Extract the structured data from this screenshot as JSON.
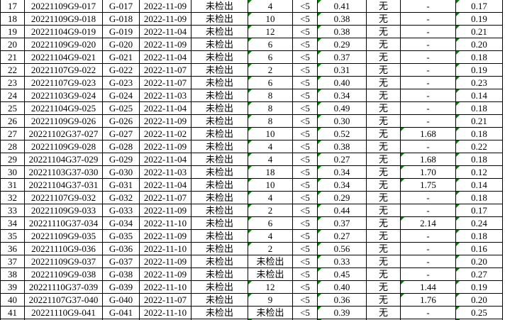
{
  "app": {
    "description_text": "",
    "colors": {
      "grid_border": "#000000",
      "cell_background": "#ffffff",
      "text": "#000000",
      "error_flag_green": "#008000"
    }
  },
  "table": {
    "visible_row_numbers_range": "17-41",
    "column_count": 11,
    "rows": [
      {
        "cells": [
          "17",
          "20221109G9-017",
          "G-017",
          "2022-11-09",
          "未检出",
          "4",
          "<5",
          "0.41",
          "无",
          "-",
          "0.17"
        ],
        "flags": [
          5,
          7,
          10
        ]
      },
      {
        "cells": [
          "18",
          "20221109G9-018",
          "G-018",
          "2022-11-09",
          "未检出",
          "10",
          "<5",
          "0.38",
          "无",
          "-",
          "0.19"
        ],
        "flags": [
          5,
          7,
          10
        ]
      },
      {
        "cells": [
          "19",
          "20221104G9-019",
          "G-019",
          "2022-11-04",
          "未检出",
          "12",
          "<5",
          "0.38",
          "无",
          "-",
          "0.21"
        ],
        "flags": [
          5,
          7,
          10
        ]
      },
      {
        "cells": [
          "20",
          "20221109G9-020",
          "G-020",
          "2022-11-09",
          "未检出",
          "6",
          "<5",
          "0.29",
          "无",
          "-",
          "0.20"
        ],
        "flags": [
          5,
          7,
          10
        ]
      },
      {
        "cells": [
          "21",
          "20221104G9-021",
          "G-021",
          "2022-11-04",
          "未检出",
          "6",
          "<5",
          "0.37",
          "无",
          "-",
          "0.18"
        ],
        "flags": [
          5,
          7,
          10
        ]
      },
      {
        "cells": [
          "22",
          "20221107G9-022",
          "G-022",
          "2022-11-07",
          "未检出",
          "2",
          "<5",
          "0.31",
          "无",
          "-",
          "0.19"
        ],
        "flags": [
          5,
          7,
          10
        ]
      },
      {
        "cells": [
          "23",
          "20221107G9-023",
          "G-023",
          "2022-11-07",
          "未检出",
          "6",
          "<5",
          "0.40",
          "无",
          "-",
          "0.23"
        ],
        "flags": [
          5,
          7,
          10
        ]
      },
      {
        "cells": [
          "24",
          "20221103G9-024",
          "G-024",
          "2022-11-03",
          "未检出",
          "8",
          "<5",
          "0.34",
          "无",
          "-",
          "0.14"
        ],
        "flags": [
          5,
          7,
          10
        ]
      },
      {
        "cells": [
          "25",
          "20221104G9-025",
          "G-025",
          "2022-11-04",
          "未检出",
          "8",
          "<5",
          "0.49",
          "无",
          "-",
          "0.18"
        ],
        "flags": [
          5,
          7,
          10
        ]
      },
      {
        "cells": [
          "26",
          "20221109G9-026",
          "G-026",
          "2022-11-09",
          "未检出",
          "8",
          "<5",
          "0.30",
          "无",
          "-",
          "0.21"
        ],
        "flags": [
          5,
          7,
          10
        ]
      },
      {
        "cells": [
          "27",
          "20221102G37-027",
          "G-027",
          "2022-11-02",
          "未检出",
          "10",
          "<5",
          "0.52",
          "无",
          "1.68",
          "0.18"
        ],
        "flags": [
          5,
          7,
          9,
          10
        ]
      },
      {
        "cells": [
          "28",
          "20221109G9-028",
          "G-028",
          "2022-11-09",
          "未检出",
          "4",
          "<5",
          "0.38",
          "无",
          "-",
          "0.22"
        ],
        "flags": [
          5,
          7,
          10
        ]
      },
      {
        "cells": [
          "29",
          "20221104G37-029",
          "G-029",
          "2022-11-04",
          "未检出",
          "4",
          "<5",
          "0.27",
          "无",
          "1.68",
          "0.18"
        ],
        "flags": [
          5,
          7,
          9,
          10
        ]
      },
      {
        "cells": [
          "30",
          "20221103G37-030",
          "G-030",
          "2022-11-03",
          "未检出",
          "18",
          "<5",
          "0.34",
          "无",
          "1.70",
          "0.12"
        ],
        "flags": [
          5,
          7,
          9,
          10
        ]
      },
      {
        "cells": [
          "31",
          "20221104G37-031",
          "G-031",
          "2022-11-04",
          "未检出",
          "10",
          "<5",
          "0.34",
          "无",
          "1.75",
          "0.14"
        ],
        "flags": [
          5,
          7,
          9,
          10
        ]
      },
      {
        "cells": [
          "32",
          "20221107G9-032",
          "G-032",
          "2022-11-07",
          "未检出",
          "4",
          "<5",
          "0.29",
          "无",
          "-",
          "0.18"
        ],
        "flags": [
          5,
          7,
          10
        ]
      },
      {
        "cells": [
          "33",
          "20221109G9-033",
          "G-033",
          "2022-11-09",
          "未检出",
          "2",
          "<5",
          "0.44",
          "无",
          "-",
          "0.17"
        ],
        "flags": [
          5,
          7,
          10
        ]
      },
      {
        "cells": [
          "34",
          "20221110G37-034",
          "G-034",
          "2022-11-10",
          "未检出",
          "6",
          "<5",
          "0.37",
          "无",
          "2.14",
          "0.24"
        ],
        "flags": [
          5,
          7,
          9,
          10
        ]
      },
      {
        "cells": [
          "35",
          "20221109G9-035",
          "G-035",
          "2022-11-09",
          "未检出",
          "4",
          "<5",
          "0.27",
          "无",
          "-",
          "0.18"
        ],
        "flags": [
          5,
          7,
          10
        ]
      },
      {
        "cells": [
          "36",
          "20221110G9-036",
          "G-036",
          "2022-11-10",
          "未检出",
          "2",
          "<5",
          "0.56",
          "无",
          "-",
          "0.16"
        ],
        "flags": [
          5,
          7,
          10
        ]
      },
      {
        "cells": [
          "37",
          "20221109G9-037",
          "G-037",
          "2022-11-09",
          "未检出",
          "未检出",
          "<5",
          "0.33",
          "无",
          "-",
          "0.20"
        ],
        "flags": [
          7,
          10
        ]
      },
      {
        "cells": [
          "38",
          "20221109G9-038",
          "G-038",
          "2022-11-09",
          "未检出",
          "未检出",
          "<5",
          "0.45",
          "无",
          "-",
          "0.27"
        ],
        "flags": [
          7,
          10
        ]
      },
      {
        "cells": [
          "39",
          "20221110G37-039",
          "G-039",
          "2022-11-10",
          "未检出",
          "12",
          "<5",
          "0.40",
          "无",
          "1.44",
          "0.19"
        ],
        "flags": [
          5,
          7,
          9,
          10
        ]
      },
      {
        "cells": [
          "40",
          "20221107G37-040",
          "G-040",
          "2022-11-07",
          "未检出",
          "9",
          "<5",
          "0.36",
          "无",
          "1.76",
          "0.20"
        ],
        "flags": [
          5,
          7,
          9,
          10
        ]
      },
      {
        "cells": [
          "41",
          "20221110G9-041",
          "G-041",
          "2022-11-10",
          "未检出",
          "未检出",
          "<5",
          "0.39",
          "无",
          "-",
          "0.25"
        ],
        "flags": [
          7,
          10
        ]
      }
    ],
    "partial_next_row": {
      "flags": [
        5,
        7,
        10
      ]
    }
  }
}
